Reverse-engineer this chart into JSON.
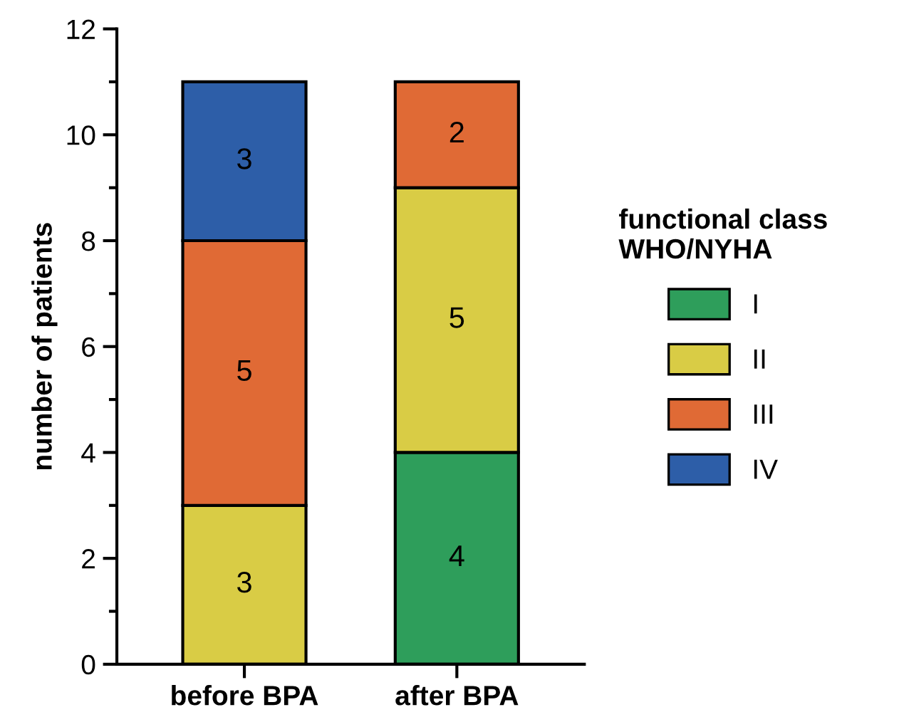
{
  "chart_data": {
    "type": "bar",
    "stacked": true,
    "ylabel": "number of patients",
    "legend_title": "functional class\nWHO/NYHA",
    "legend": "right",
    "categories": [
      "before BPA",
      "after BPA"
    ],
    "series": [
      {
        "name": "I",
        "color": "#2e9e5b",
        "values": [
          null,
          4
        ],
        "value_labels": [
          null,
          "4"
        ]
      },
      {
        "name": "II",
        "color": "#d9cc45",
        "values": [
          3,
          5
        ],
        "value_labels": [
          "3",
          "5"
        ]
      },
      {
        "name": "III",
        "color": "#e06a35",
        "values": [
          5,
          2
        ],
        "value_labels": [
          "5",
          "2"
        ]
      },
      {
        "name": "IV",
        "color": "#2d5ea8",
        "values": [
          3,
          null
        ],
        "value_labels": [
          "3",
          null
        ]
      }
    ],
    "ylim": [
      0,
      12
    ],
    "yticks": [
      0,
      {
        "value": 1,
        "label": null
      },
      2,
      {
        "value": 3,
        "label": null
      },
      4,
      {
        "value": 5,
        "label": null
      },
      6,
      {
        "value": 7,
        "label": null
      },
      8,
      {
        "value": 9,
        "label": null
      },
      10,
      {
        "value": 11,
        "label": null
      },
      12
    ],
    "grid": false
  }
}
